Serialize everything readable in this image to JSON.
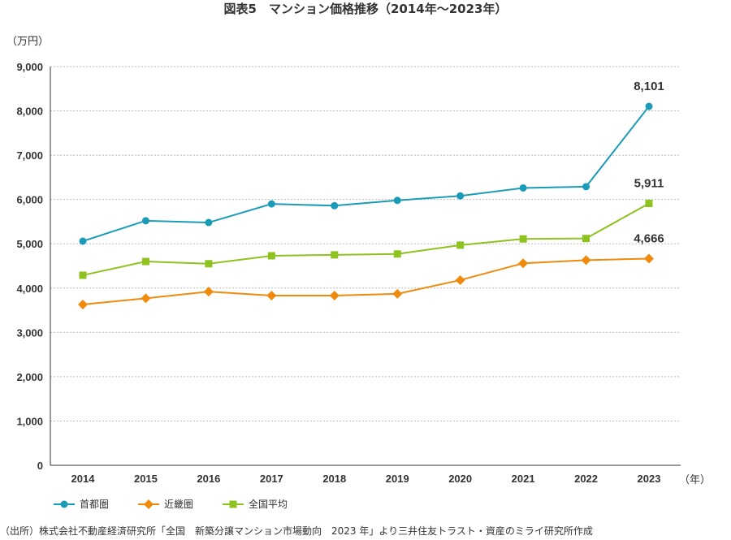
{
  "chart_data": {
    "type": "line",
    "title": "図表5　マンション価格推移（2014年～2023年）",
    "ylabel": "（万円）",
    "xlabel": "（年）",
    "ylim": [
      0,
      9000
    ],
    "yticks": [
      "0",
      "1,000",
      "2,000",
      "3,000",
      "4,000",
      "5,000",
      "6,000",
      "7,000",
      "8,000",
      "9,000"
    ],
    "categories": [
      "2014",
      "2015",
      "2016",
      "2017",
      "2018",
      "2019",
      "2020",
      "2021",
      "2022",
      "2023"
    ],
    "grid": "horizontal-dashed",
    "legend": "bottom-left",
    "series": [
      {
        "name": "首都圏",
        "color": "#1a9bb8",
        "marker": "circle",
        "values": [
          5060,
          5520,
          5480,
          5900,
          5860,
          5980,
          6080,
          6260,
          6290,
          8101
        ],
        "last_label": "8,101"
      },
      {
        "name": "近畿圏",
        "color": "#f08a0c",
        "marker": "diamond",
        "values": [
          3630,
          3770,
          3920,
          3830,
          3830,
          3870,
          4180,
          4560,
          4630,
          4666
        ],
        "last_label": "4,666"
      },
      {
        "name": "全国平均",
        "color": "#8dc21f",
        "marker": "square",
        "values": [
          4290,
          4600,
          4550,
          4730,
          4750,
          4770,
          4970,
          5110,
          5120,
          5911
        ],
        "last_label": "5,911"
      }
    ]
  },
  "source": "（出所）株式会社不動産経済研究所「全国　新築分譲マンション市場動向　2023 年」より三井住友トラスト・資産のミライ研究所作成"
}
